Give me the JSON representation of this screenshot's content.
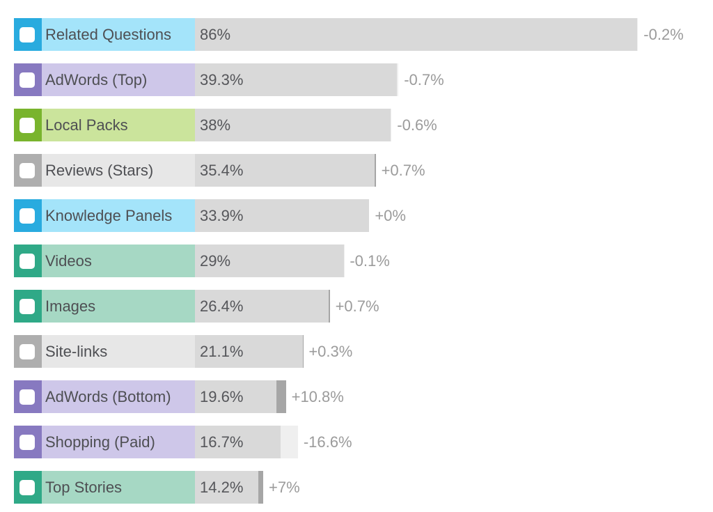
{
  "chart_data": {
    "type": "bar",
    "orientation": "horizontal",
    "title": "",
    "unit": "%",
    "value_axis_range": [
      0,
      86
    ],
    "grid": false,
    "legend_position": "none",
    "bar_color": "#d9d9d9",
    "gain_segment_color": "#a6a6a6",
    "loss_segment_color": "#efefef",
    "value_text_color": "#55565a",
    "change_text_color": "#9b9b9b",
    "themes": {
      "blue": {
        "checkbox_bg": "#29abdf",
        "label_bg": "#a4e4fa"
      },
      "purple": {
        "checkbox_bg": "#8779c0",
        "label_bg": "#cec7e9"
      },
      "green": {
        "checkbox_bg": "#79b42d",
        "label_bg": "#cbe49c"
      },
      "gray": {
        "checkbox_bg": "#aeaeae",
        "label_bg": "#e7e7e7"
      },
      "teal": {
        "checkbox_bg": "#2fa987",
        "label_bg": "#a6d8c4"
      }
    },
    "rows": [
      {
        "label": "Related Questions",
        "value_text": "86%",
        "value": 86,
        "change_text": "-0.2%",
        "change": -0.2,
        "theme": "blue"
      },
      {
        "label": "AdWords (Top)",
        "value_text": "39.3%",
        "value": 39.3,
        "change_text": "-0.7%",
        "change": -0.7,
        "theme": "purple"
      },
      {
        "label": "Local Packs",
        "value_text": "38%",
        "value": 38,
        "change_text": "-0.6%",
        "change": -0.6,
        "theme": "green"
      },
      {
        "label": "Reviews (Stars)",
        "value_text": "35.4%",
        "value": 35.4,
        "change_text": "+0.7%",
        "change": 0.7,
        "theme": "gray"
      },
      {
        "label": "Knowledge Panels",
        "value_text": "33.9%",
        "value": 33.9,
        "change_text": "+0%",
        "change": 0,
        "theme": "blue"
      },
      {
        "label": "Videos",
        "value_text": "29%",
        "value": 29,
        "change_text": "-0.1%",
        "change": -0.1,
        "theme": "teal"
      },
      {
        "label": "Images",
        "value_text": "26.4%",
        "value": 26.4,
        "change_text": "+0.7%",
        "change": 0.7,
        "theme": "teal"
      },
      {
        "label": "Site-links",
        "value_text": "21.1%",
        "value": 21.1,
        "change_text": "+0.3%",
        "change": 0.3,
        "theme": "gray"
      },
      {
        "label": "AdWords (Bottom)",
        "value_text": "19.6%",
        "value": 19.6,
        "change_text": "+10.8%",
        "change": 10.8,
        "theme": "purple"
      },
      {
        "label": "Shopping (Paid)",
        "value_text": "16.7%",
        "value": 16.7,
        "change_text": "-16.6%",
        "change": -16.6,
        "theme": "purple"
      },
      {
        "label": "Top Stories",
        "value_text": "14.2%",
        "value": 14.2,
        "change_text": "+7%",
        "change": 7,
        "theme": "teal"
      }
    ]
  }
}
